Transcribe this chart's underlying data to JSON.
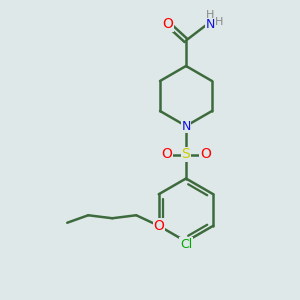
{
  "bg_color": "#dfe8e8",
  "bond_color": "#3d6b3d",
  "bond_width": 1.8,
  "atom_colors": {
    "O": "#ff0000",
    "N": "#1010dd",
    "S": "#cccc00",
    "Cl": "#00aa00",
    "H": "#888888",
    "C": "#3d6b3d"
  },
  "figsize": [
    3.0,
    3.0
  ],
  "dpi": 100,
  "xlim": [
    0,
    10
  ],
  "ylim": [
    0,
    10
  ]
}
